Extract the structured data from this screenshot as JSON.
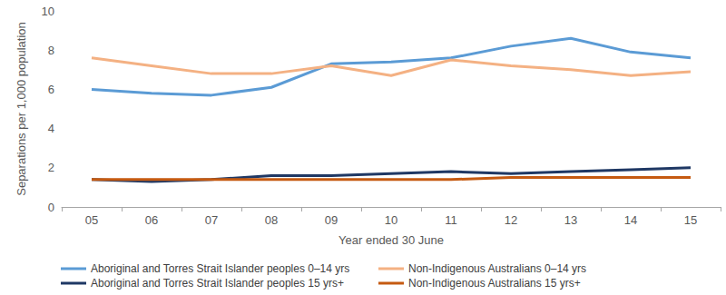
{
  "chart_data": {
    "type": "line",
    "x_label": "Year ended 30 June",
    "y_label": "Separations per 1,000 population",
    "categories": [
      "05",
      "06",
      "07",
      "08",
      "09",
      "10",
      "11",
      "12",
      "13",
      "14",
      "15"
    ],
    "series": [
      {
        "name": "Aboriginal and Torres Strait Islander peoples 0–14 yrs",
        "color": "#5b9bd5",
        "values": [
          6.0,
          5.8,
          5.7,
          6.1,
          7.3,
          7.4,
          7.6,
          8.2,
          8.6,
          7.9,
          7.6
        ]
      },
      {
        "name": "Non-Indigenous Australians 0–14 yrs",
        "color": "#f4b183",
        "values": [
          7.6,
          7.2,
          6.8,
          6.8,
          7.2,
          6.7,
          7.5,
          7.2,
          7.0,
          6.7,
          6.9
        ]
      },
      {
        "name": "Aboriginal and Torres Strait Islander peoples 15 yrs+",
        "color": "#1f3864",
        "values": [
          1.4,
          1.3,
          1.4,
          1.6,
          1.6,
          1.7,
          1.8,
          1.7,
          1.8,
          1.9,
          2.0
        ]
      },
      {
        "name": "Non-Indigenous Australians 15 yrs+",
        "color": "#c55a11",
        "values": [
          1.4,
          1.4,
          1.4,
          1.4,
          1.4,
          1.4,
          1.4,
          1.5,
          1.5,
          1.5,
          1.5
        ]
      }
    ],
    "ylim": [
      0,
      10
    ],
    "yticks": [
      0,
      2,
      4,
      6,
      8,
      10
    ],
    "grid": false,
    "legend": "bottom",
    "marker": "none"
  }
}
